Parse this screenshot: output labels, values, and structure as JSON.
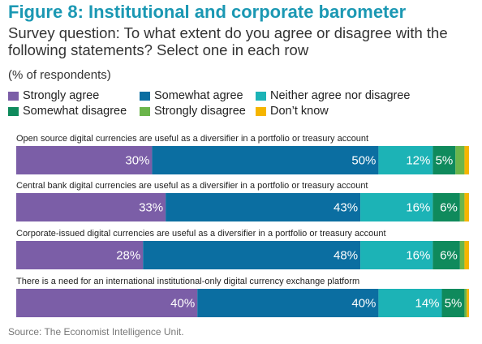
{
  "chart_data": {
    "type": "stacked-barh",
    "title": "Figure 8: Institutional and corporate barometer",
    "subtitle": "Survey question: To what extent do you agree or disagree with the following statements? Select one in each row",
    "unit_note": "(% of respondents)",
    "source": "Source: The Economist Intelligence Unit.",
    "categories": [
      "Open source digital currencies are useful as a diversifier in a portfolio or treasury account",
      "Central bank digital currencies are useful as a diversifier in a portfolio or treasury account",
      "Corporate-issued digital currencies are useful as a diversifier in a portfolio or treasury account",
      "There is a need for an international institutional-only digital currency exchange platform"
    ],
    "series": [
      {
        "name": "Strongly agree",
        "color": "#7b5ea7",
        "values": [
          30,
          33,
          28,
          40
        ],
        "value_labels": [
          "30%",
          "33%",
          "28%",
          "40%"
        ]
      },
      {
        "name": "Somewhat agree",
        "color": "#0b6ea1",
        "values": [
          50,
          43,
          48,
          40
        ],
        "value_labels": [
          "50%",
          "43%",
          "48%",
          "40%"
        ]
      },
      {
        "name": "Neither agree nor disagree",
        "color": "#1cb3b6",
        "values": [
          12,
          16,
          16,
          14
        ],
        "value_labels": [
          "12%",
          "16%",
          "16%",
          "14%"
        ]
      },
      {
        "name": "Somewhat disagree",
        "color": "#0f8a5c",
        "values": [
          5,
          6,
          6,
          5
        ],
        "value_labels": [
          "5%",
          "6%",
          "6%",
          "5%"
        ]
      },
      {
        "name": "Strongly disagree",
        "color": "#6bb54b",
        "values": [
          2,
          1,
          1,
          0.5
        ]
      },
      {
        "name": "Don’t know",
        "color": "#f5b500",
        "values": [
          1,
          1,
          1,
          0.5
        ]
      }
    ],
    "xlim": [
      0,
      100
    ]
  }
}
